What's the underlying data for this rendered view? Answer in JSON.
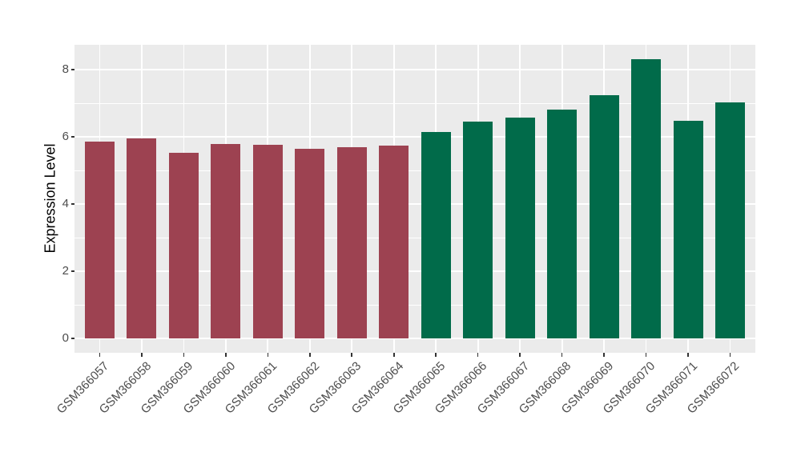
{
  "chart_data": {
    "type": "bar",
    "title": "",
    "xlabel": "",
    "ylabel": "Expression Level",
    "categories": [
      "GSM366057",
      "GSM366058",
      "GSM366059",
      "GSM366060",
      "GSM366061",
      "GSM366062",
      "GSM366063",
      "GSM366064",
      "GSM366065",
      "GSM366066",
      "GSM366067",
      "GSM366068",
      "GSM366069",
      "GSM366070",
      "GSM366071",
      "GSM366072"
    ],
    "values": [
      5.85,
      5.95,
      5.52,
      5.79,
      5.77,
      5.65,
      5.7,
      5.75,
      6.15,
      6.45,
      6.57,
      6.81,
      7.24,
      8.31,
      6.48,
      7.02
    ],
    "bar_colors": [
      "#9D4251",
      "#9D4251",
      "#9D4251",
      "#9D4251",
      "#9D4251",
      "#9D4251",
      "#9D4251",
      "#9D4251",
      "#016B4A",
      "#016B4A",
      "#016B4A",
      "#016B4A",
      "#016B4A",
      "#016B4A",
      "#016B4A",
      "#016B4A"
    ],
    "groups": [
      {
        "label": "GSM366057-GSM366064",
        "color": "#9D4251",
        "count": 8
      },
      {
        "label": "GSM366065-GSM366072",
        "color": "#016B4A",
        "count": 8
      }
    ],
    "yticks": [
      0,
      2,
      4,
      6,
      8
    ],
    "minor_yticks": [
      1,
      3,
      5,
      7
    ],
    "ylim": [
      -0.43,
      8.74
    ],
    "grid": true,
    "legend": "none",
    "colors": {
      "panel_background": "#EBEBEB",
      "grid": "#FFFFFF",
      "tick_label": "#4D4D4D",
      "axis_title": "#000000",
      "tick_mark": "#333333",
      "figure_background": "#FFFFFF"
    }
  }
}
